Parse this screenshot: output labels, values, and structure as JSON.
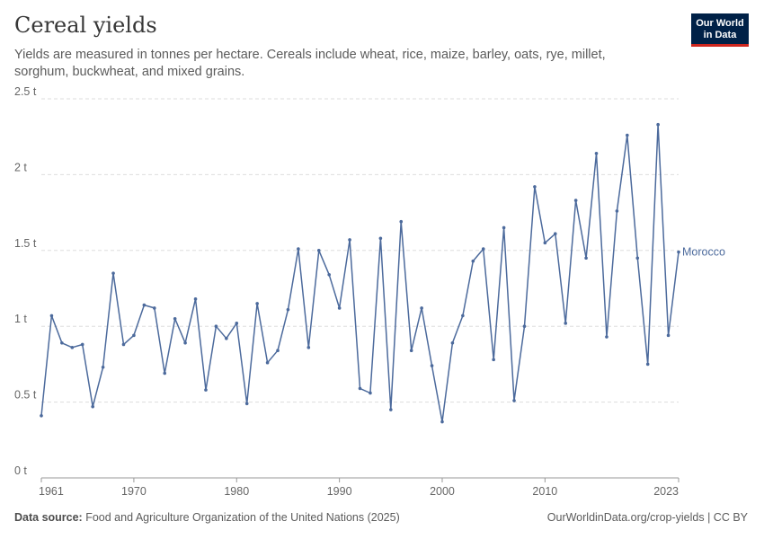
{
  "title": "Cereal yields",
  "subtitle": "Yields are measured in tonnes per hectare. Cereals include wheat, rice, maize, barley, oats, rye, millet, sorghum, buckwheat, and mixed grains.",
  "logo": {
    "line1": "Our World",
    "line2": "in Data"
  },
  "footer": {
    "source_label": "Data source:",
    "source_text": "Food and Agriculture Organization of the United Nations (2025)",
    "url": "OurWorldinData.org/crop-yields | CC BY"
  },
  "colors": {
    "series": "#4c6a9c",
    "grid": "#dddddd",
    "axis": "#999999"
  },
  "chart_data": {
    "type": "line",
    "xlim": [
      1961,
      2023
    ],
    "ylim": [
      0,
      2.5
    ],
    "x_ticks": [
      {
        "value": 1961,
        "label": "1961"
      },
      {
        "value": 1970,
        "label": "1970"
      },
      {
        "value": 1980,
        "label": "1980"
      },
      {
        "value": 1990,
        "label": "1990"
      },
      {
        "value": 2000,
        "label": "2000"
      },
      {
        "value": 2010,
        "label": "2010"
      },
      {
        "value": 2023,
        "label": "2023"
      }
    ],
    "y_ticks": [
      {
        "value": 0,
        "label": "0 t"
      },
      {
        "value": 0.5,
        "label": "0.5 t"
      },
      {
        "value": 1,
        "label": "1 t"
      },
      {
        "value": 1.5,
        "label": "1.5 t"
      },
      {
        "value": 2,
        "label": "2 t"
      },
      {
        "value": 2.5,
        "label": "2.5 t"
      }
    ],
    "grid": true,
    "series": [
      {
        "name": "Morocco",
        "x": [
          1961,
          1962,
          1963,
          1964,
          1965,
          1966,
          1967,
          1968,
          1969,
          1970,
          1971,
          1972,
          1973,
          1974,
          1975,
          1976,
          1977,
          1978,
          1979,
          1980,
          1981,
          1982,
          1983,
          1984,
          1985,
          1986,
          1987,
          1988,
          1989,
          1990,
          1991,
          1992,
          1993,
          1994,
          1995,
          1996,
          1997,
          1998,
          1999,
          2000,
          2001,
          2002,
          2003,
          2004,
          2005,
          2006,
          2007,
          2008,
          2009,
          2010,
          2011,
          2012,
          2013,
          2014,
          2015,
          2016,
          2017,
          2018,
          2019,
          2020,
          2021,
          2022,
          2023
        ],
        "values": [
          0.41,
          1.07,
          0.89,
          0.86,
          0.88,
          0.47,
          0.73,
          1.35,
          0.88,
          0.94,
          1.14,
          1.12,
          0.69,
          1.05,
          0.89,
          1.18,
          0.58,
          1.0,
          0.92,
          1.02,
          0.49,
          1.15,
          0.76,
          0.84,
          1.11,
          1.51,
          0.86,
          1.5,
          1.34,
          1.12,
          1.57,
          0.59,
          0.56,
          1.58,
          0.45,
          1.69,
          0.84,
          1.12,
          0.74,
          0.37,
          0.89,
          1.07,
          1.43,
          1.51,
          0.78,
          1.65,
          0.51,
          1.0,
          1.92,
          1.55,
          1.61,
          1.02,
          1.83,
          1.45,
          2.14,
          0.93,
          1.76,
          2.26,
          1.45,
          0.75,
          2.33,
          0.94,
          1.49
        ]
      }
    ]
  }
}
